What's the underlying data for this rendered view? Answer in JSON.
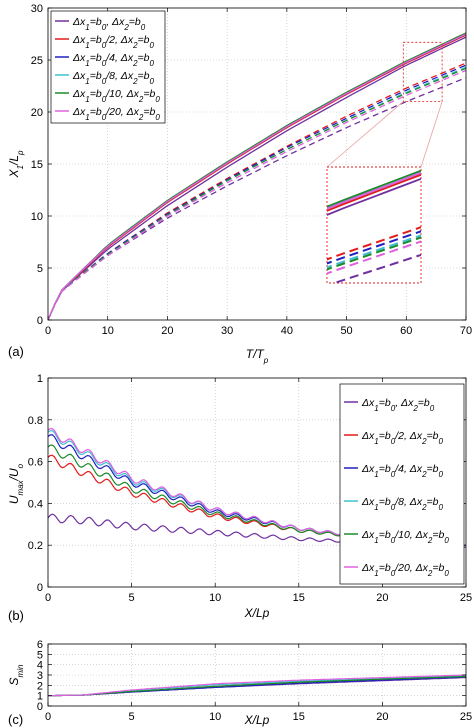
{
  "chart_data": [
    {
      "type": "line",
      "panel_label": "(a)",
      "xlabel": "T/T_p",
      "ylabel": "X_1/L_p",
      "xlim": [
        0,
        70
      ],
      "ylim": [
        0,
        30
      ],
      "xticks": [
        0,
        10,
        20,
        30,
        40,
        50,
        60,
        70
      ],
      "yticks": [
        0,
        5,
        10,
        15,
        20,
        25,
        30
      ],
      "grid": true,
      "legend_position": "top-left",
      "annotation": "dotted zoom box near x=60, y=25 with magnified inset below",
      "series": [
        {
          "name": "Δx₁=b₀, Δx₂=b₀",
          "color": "#7030a0",
          "solid": [
            [
              0,
              0
            ],
            [
              2,
              2.6
            ],
            [
              5,
              4.2
            ],
            [
              10,
              6.8
            ],
            [
              20,
              11.0
            ],
            [
              30,
              14.7
            ],
            [
              40,
              18.2
            ],
            [
              50,
              21.4
            ],
            [
              60,
              24.5
            ],
            [
              70,
              27.2
            ]
          ],
          "dashed": [
            [
              0,
              0
            ],
            [
              2,
              2.6
            ],
            [
              5,
              4.0
            ],
            [
              10,
              6.2
            ],
            [
              20,
              9.8
            ],
            [
              30,
              12.9
            ],
            [
              40,
              15.8
            ],
            [
              50,
              18.5
            ],
            [
              60,
              21.0
            ],
            [
              70,
              23.3
            ]
          ]
        },
        {
          "name": "Δx₁=b₀/2, Δx₂=b₀",
          "color": "#e41a1c",
          "solid": [
            [
              0,
              0
            ],
            [
              2,
              2.7
            ],
            [
              5,
              4.3
            ],
            [
              10,
              7.0
            ],
            [
              20,
              11.3
            ],
            [
              30,
              15.0
            ],
            [
              40,
              18.5
            ],
            [
              50,
              21.7
            ],
            [
              60,
              24.7
            ],
            [
              70,
              27.4
            ]
          ],
          "dashed": [
            [
              0,
              0
            ],
            [
              2,
              2.6
            ],
            [
              5,
              4.1
            ],
            [
              10,
              6.4
            ],
            [
              20,
              10.3
            ],
            [
              30,
              13.6
            ],
            [
              40,
              16.7
            ],
            [
              50,
              19.6
            ],
            [
              60,
              22.3
            ],
            [
              70,
              24.7
            ]
          ]
        },
        {
          "name": "Δx₁=b₀/4, Δx₂=b₀",
          "color": "#2020c0",
          "solid": [
            [
              0,
              0
            ],
            [
              2,
              2.7
            ],
            [
              5,
              4.4
            ],
            [
              10,
              7.1
            ],
            [
              20,
              11.4
            ],
            [
              30,
              15.1
            ],
            [
              40,
              18.6
            ],
            [
              50,
              21.8
            ],
            [
              60,
              24.8
            ],
            [
              70,
              27.5
            ]
          ],
          "dashed": [
            [
              0,
              0
            ],
            [
              2,
              2.6
            ],
            [
              5,
              4.1
            ],
            [
              10,
              6.4
            ],
            [
              20,
              10.2
            ],
            [
              30,
              13.5
            ],
            [
              40,
              16.6
            ],
            [
              50,
              19.4
            ],
            [
              60,
              22.1
            ],
            [
              70,
              24.5
            ]
          ]
        },
        {
          "name": "Δx₁=b₀/8, Δx₂=b₀",
          "color": "#40c0d0",
          "solid": [
            [
              0,
              0
            ],
            [
              2,
              2.7
            ],
            [
              5,
              4.4
            ],
            [
              10,
              7.1
            ],
            [
              20,
              11.4
            ],
            [
              30,
              15.1
            ],
            [
              40,
              18.6
            ],
            [
              50,
              21.8
            ],
            [
              60,
              24.8
            ],
            [
              70,
              27.5
            ]
          ],
          "dashed": [
            [
              0,
              0
            ],
            [
              2,
              2.6
            ],
            [
              5,
              4.1
            ],
            [
              10,
              6.3
            ],
            [
              20,
              10.1
            ],
            [
              30,
              13.4
            ],
            [
              40,
              16.4
            ],
            [
              50,
              19.2
            ],
            [
              60,
              21.9
            ],
            [
              70,
              24.3
            ]
          ]
        },
        {
          "name": "Δx₁=b₀/10, Δx₂=b₀",
          "color": "#1a8a2a",
          "solid": [
            [
              0,
              0
            ],
            [
              2,
              2.7
            ],
            [
              5,
              4.4
            ],
            [
              10,
              7.2
            ],
            [
              20,
              11.5
            ],
            [
              30,
              15.2
            ],
            [
              40,
              18.7
            ],
            [
              50,
              21.9
            ],
            [
              60,
              24.9
            ],
            [
              70,
              27.6
            ]
          ],
          "dashed": [
            [
              0,
              0
            ],
            [
              2,
              2.6
            ],
            [
              5,
              4.1
            ],
            [
              10,
              6.3
            ],
            [
              20,
              10.1
            ],
            [
              30,
              13.4
            ],
            [
              40,
              16.4
            ],
            [
              50,
              19.2
            ],
            [
              60,
              21.8
            ],
            [
              70,
              24.2
            ]
          ]
        },
        {
          "name": "Δx₁=b₀/20, Δx₂=b₀",
          "color": "#e060e0",
          "solid": [
            [
              0,
              0
            ],
            [
              2,
              2.7
            ],
            [
              5,
              4.4
            ],
            [
              10,
              7.1
            ],
            [
              20,
              11.4
            ],
            [
              30,
              15.1
            ],
            [
              40,
              18.6
            ],
            [
              50,
              21.8
            ],
            [
              60,
              24.8
            ],
            [
              70,
              27.5
            ]
          ],
          "dashed": [
            [
              0,
              0
            ],
            [
              2,
              2.6
            ],
            [
              5,
              4.0
            ],
            [
              10,
              6.2
            ],
            [
              20,
              10.0
            ],
            [
              30,
              13.2
            ],
            [
              40,
              16.2
            ],
            [
              50,
              19.0
            ],
            [
              60,
              21.6
            ],
            [
              70,
              24.0
            ]
          ]
        }
      ]
    },
    {
      "type": "line",
      "panel_label": "(b)",
      "xlabel": "X/Lp",
      "ylabel": "U_max/U_o",
      "xlim": [
        0,
        25
      ],
      "ylim": [
        0,
        1
      ],
      "xticks": [
        0,
        5,
        10,
        15,
        20,
        25
      ],
      "yticks": [
        0,
        0.2,
        0.4,
        0.6,
        0.8,
        1
      ],
      "grid": true,
      "legend_position": "top-right",
      "series": [
        {
          "name": "Δx₁=b₀, Δx₂=b₀",
          "color": "#7030a0",
          "values": [
            [
              0,
              0.33
            ],
            [
              2,
              0.32
            ],
            [
              5,
              0.29
            ],
            [
              10,
              0.26
            ],
            [
              15,
              0.23
            ],
            [
              20,
              0.21
            ],
            [
              25,
              0.19
            ]
          ]
        },
        {
          "name": "Δx₁=b₀/2, Δx₂=b₀",
          "color": "#e41a1c",
          "values": [
            [
              0,
              0.62
            ],
            [
              2,
              0.55
            ],
            [
              5,
              0.45
            ],
            [
              10,
              0.34
            ],
            [
              15,
              0.27
            ],
            [
              20,
              0.23
            ],
            [
              25,
              0.2
            ]
          ]
        },
        {
          "name": "Δx₁=b₀/4, Δx₂=b₀",
          "color": "#2020c0",
          "values": [
            [
              0,
              0.72
            ],
            [
              2,
              0.63
            ],
            [
              5,
              0.5
            ],
            [
              10,
              0.36
            ],
            [
              15,
              0.28
            ],
            [
              20,
              0.23
            ],
            [
              25,
              0.2
            ]
          ]
        },
        {
          "name": "Δx₁=b₀/8, Δx₂=b₀",
          "color": "#40c0d0",
          "values": [
            [
              0,
              0.74
            ],
            [
              2,
              0.65
            ],
            [
              5,
              0.51
            ],
            [
              10,
              0.37
            ],
            [
              15,
              0.28
            ],
            [
              20,
              0.23
            ],
            [
              25,
              0.2
            ]
          ]
        },
        {
          "name": "Δx₁=b₀/10, Δx₂=b₀",
          "color": "#1a8a2a",
          "values": [
            [
              0,
              0.67
            ],
            [
              2,
              0.59
            ],
            [
              5,
              0.47
            ],
            [
              10,
              0.35
            ],
            [
              15,
              0.27
            ],
            [
              20,
              0.23
            ],
            [
              25,
              0.2
            ]
          ]
        },
        {
          "name": "Δx₁=b₀/20, Δx₂=b₀",
          "color": "#e060e0",
          "values": [
            [
              0,
              0.75
            ],
            [
              2,
              0.66
            ],
            [
              5,
              0.52
            ],
            [
              10,
              0.37
            ],
            [
              15,
              0.28
            ],
            [
              20,
              0.23
            ],
            [
              25,
              0.2
            ]
          ]
        }
      ]
    },
    {
      "type": "line",
      "panel_label": "(c)",
      "xlabel": "X/Lp",
      "ylabel": "S_min",
      "xlim": [
        0,
        25
      ],
      "ylim": [
        0,
        6
      ],
      "xticks": [
        0,
        5,
        10,
        15,
        20,
        25
      ],
      "yticks": [
        0,
        1,
        2,
        3,
        4,
        5,
        6
      ],
      "grid": true,
      "series": [
        {
          "color": "#7030a0",
          "values": [
            [
              0,
              1.0
            ],
            [
              2,
              1.05
            ],
            [
              5,
              1.35
            ],
            [
              10,
              1.8
            ],
            [
              15,
              2.15
            ],
            [
              20,
              2.45
            ],
            [
              25,
              2.75
            ]
          ]
        },
        {
          "color": "#e41a1c",
          "values": [
            [
              0,
              1.0
            ],
            [
              2,
              1.05
            ],
            [
              5,
              1.4
            ],
            [
              10,
              1.9
            ],
            [
              15,
              2.3
            ],
            [
              20,
              2.6
            ],
            [
              25,
              2.95
            ]
          ]
        },
        {
          "color": "#2020c0",
          "values": [
            [
              0,
              1.0
            ],
            [
              2,
              1.05
            ],
            [
              5,
              1.35
            ],
            [
              10,
              1.8
            ],
            [
              15,
              2.2
            ],
            [
              20,
              2.5
            ],
            [
              25,
              2.8
            ]
          ]
        },
        {
          "color": "#40c0d0",
          "values": [
            [
              0,
              1.0
            ],
            [
              2,
              1.05
            ],
            [
              5,
              1.5
            ],
            [
              10,
              2.05
            ],
            [
              15,
              2.4
            ],
            [
              20,
              2.65
            ],
            [
              25,
              2.9
            ]
          ]
        },
        {
          "color": "#1a8a2a",
          "values": [
            [
              0,
              1.0
            ],
            [
              2,
              1.05
            ],
            [
              5,
              1.4
            ],
            [
              10,
              1.9
            ],
            [
              15,
              2.3
            ],
            [
              20,
              2.6
            ],
            [
              25,
              2.85
            ]
          ]
        },
        {
          "color": "#e060e0",
          "values": [
            [
              0,
              1.0
            ],
            [
              2,
              1.05
            ],
            [
              5,
              1.55
            ],
            [
              10,
              2.15
            ],
            [
              15,
              2.5
            ],
            [
              20,
              2.75
            ],
            [
              25,
              3.0
            ]
          ]
        }
      ]
    }
  ]
}
